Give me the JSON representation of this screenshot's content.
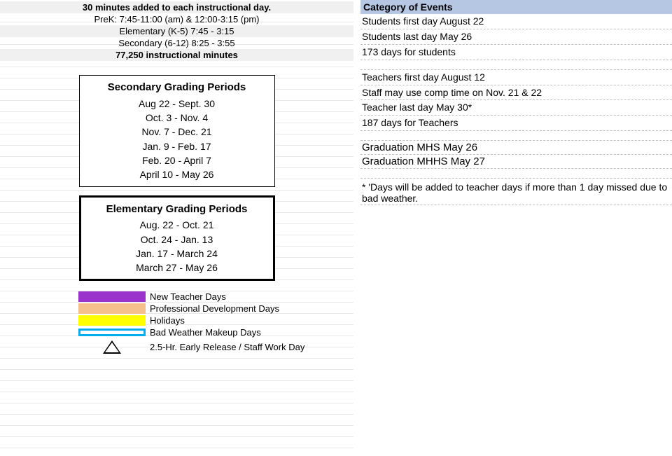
{
  "left": {
    "header_note": "30 minutes added to each instructional day.",
    "prek": "PreK: 7:45-11:00 (am) & 12:00-3:15 (pm)",
    "elementary": "Elementary (K-5) 7:45 - 3:15",
    "secondary": "Secondary (6-12) 8:25 - 3:55",
    "minutes": "77,250 instructional minutes",
    "sec_title": "Secondary Grading Periods",
    "sec_periods": [
      "Aug 22 - Sept. 30",
      "Oct. 3 - Nov. 4",
      "Nov. 7 - Dec. 21",
      "Jan. 9 - Feb. 17",
      "Feb. 20  - April 7",
      "April 10 - May 26"
    ],
    "elem_title": "Elementary Grading Periods",
    "elem_periods": [
      "Aug. 22 - Oct. 21",
      "Oct. 24 - Jan. 13",
      "Jan. 17 - March 24",
      "March 27 - May 26"
    ]
  },
  "legend": {
    "items": [
      {
        "color": "#9933cc",
        "border": "#9933cc",
        "label": "New Teacher Days"
      },
      {
        "color": "#f5c08c",
        "border": "#f5c08c",
        "label": "Professional Development Days"
      },
      {
        "color": "#ffff00",
        "border": "#ffff00",
        "label": "Holidays"
      },
      {
        "color": "#ffffff",
        "border": "#00aeef",
        "label": "Bad Weather Makeup Days"
      }
    ],
    "triangle_label": "2.5-Hr. Early Release / Staff Work Day"
  },
  "right": {
    "cat_header": "Category of Events",
    "block1": [
      "Students first day August 22",
      "Students last day May 26",
      "173 days for students"
    ],
    "block2": [
      "Teachers first day August 12",
      "Staff may use comp time on Nov. 21 & 22",
      "Teacher last day  May 30*",
      "187 days  for Teachers"
    ],
    "grads": [
      "Graduation MHS May 26",
      "Graduation MHHS May 27"
    ],
    "footnote": "* 'Days will be added to teacher days if more than 1 day missed due to bad weather."
  },
  "style": {
    "gridline_color": "#e8e8e8",
    "shaded_bg": "#f0f0f0",
    "cat_header_bg": "#b6c7e4",
    "dash_color": "#bfbfbf",
    "font_size_base": 13,
    "font_size_periods": 14,
    "font_size_right": 14,
    "box_thin_border": 1.5,
    "box_thick_border": 3,
    "legend_swatch_width": 96,
    "legend_swatch_height": 15,
    "legend_border_thick": 3
  }
}
